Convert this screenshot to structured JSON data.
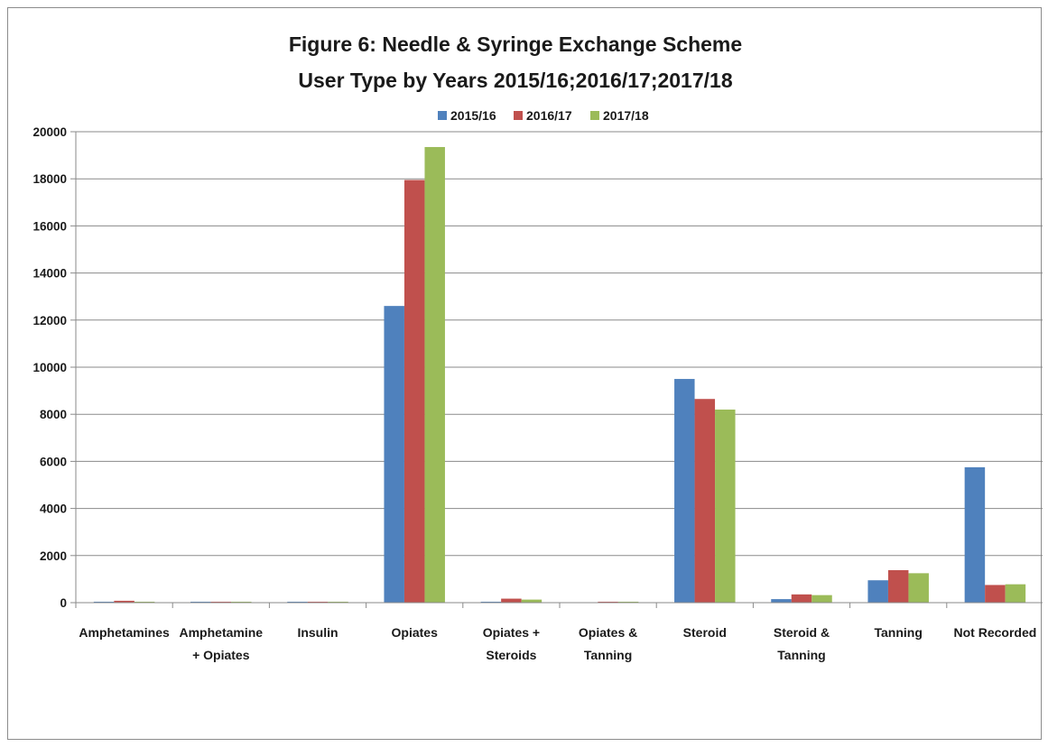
{
  "chart_data": {
    "type": "bar",
    "title": "Figure 6: Needle & Syringe Exchange Scheme",
    "subtitle": "User Type by Years 2015/16;2016/17;2017/18",
    "xlabel": "",
    "ylabel": "",
    "ylim": [
      0,
      20000
    ],
    "y_ticks": [
      "0",
      "2000",
      "4000",
      "6000",
      "8000",
      "10000",
      "12000",
      "14000",
      "16000",
      "18000",
      "20000"
    ],
    "grid": true,
    "legend_position": "top-center",
    "categories": [
      "Amphetamines",
      "Amphetamine + Opiates",
      "Insulin",
      "Opiates",
      "Opiates + Steroids",
      "Opiates & Tanning",
      "Steroid",
      "Steroid & Tanning",
      "Tanning",
      "Not Recorded"
    ],
    "category_label_lines": [
      [
        "Amphetamines"
      ],
      [
        "Amphetamine",
        "+ Opiates"
      ],
      [
        "Insulin"
      ],
      [
        "Opiates"
      ],
      [
        "Opiates +",
        "Steroids"
      ],
      [
        "Opiates &",
        "Tanning"
      ],
      [
        "Steroid"
      ],
      [
        "Steroid &",
        "Tanning"
      ],
      [
        "Tanning"
      ],
      [
        "Not Recorded"
      ]
    ],
    "series": [
      {
        "name": "2015/16",
        "color": "#4f81bd",
        "values": [
          40,
          40,
          40,
          12600,
          40,
          0,
          9500,
          150,
          950,
          5750
        ]
      },
      {
        "name": "2016/17",
        "color": "#c0504d",
        "values": [
          80,
          40,
          40,
          17950,
          170,
          40,
          8650,
          350,
          1380,
          750
        ]
      },
      {
        "name": "2017/18",
        "color": "#9bbb59",
        "values": [
          40,
          40,
          40,
          19350,
          130,
          40,
          8200,
          320,
          1250,
          780
        ]
      }
    ]
  }
}
